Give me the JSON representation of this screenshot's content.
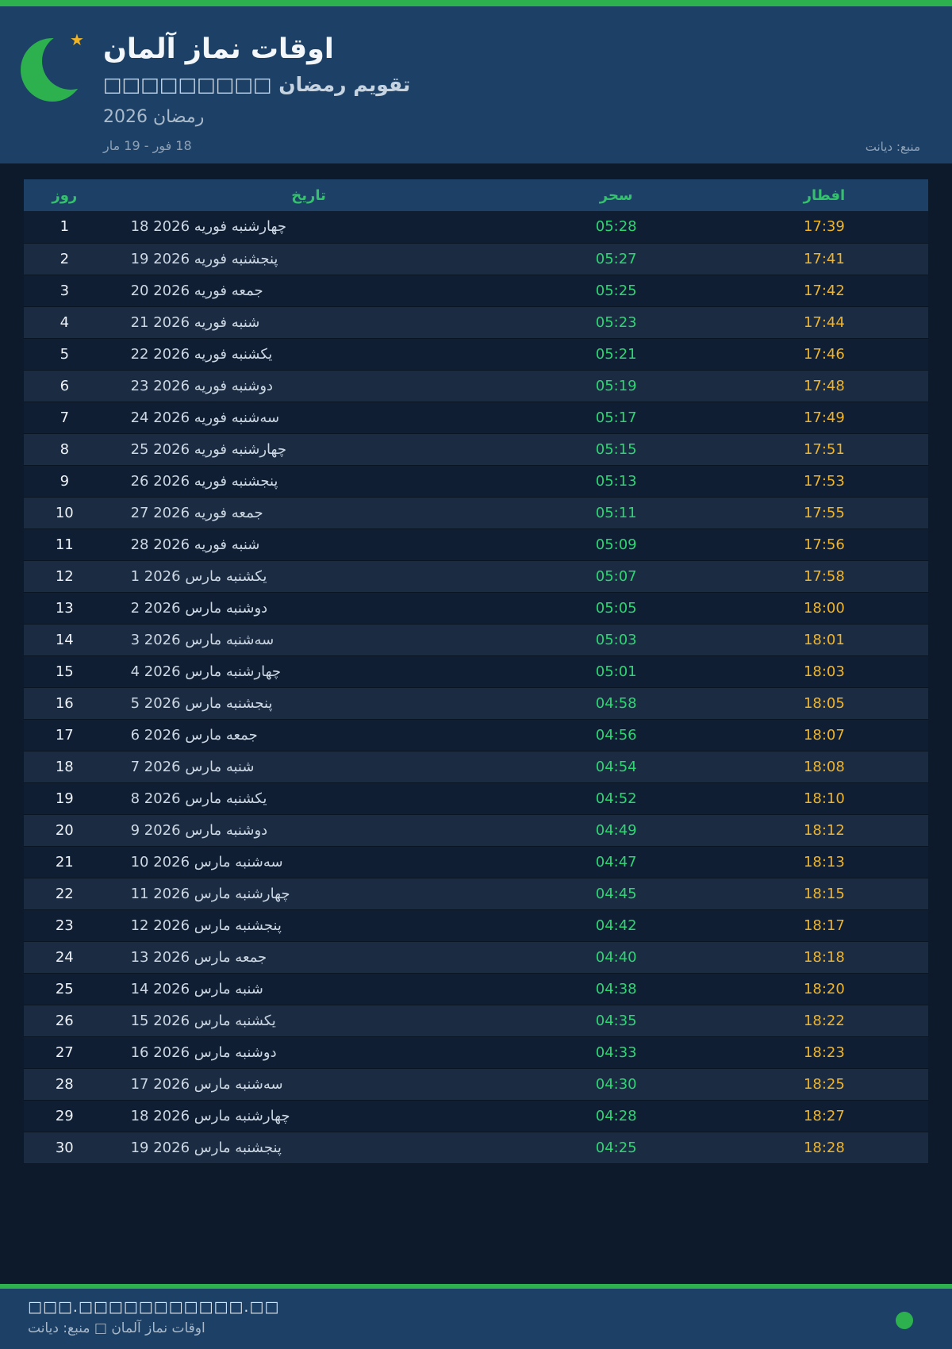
{
  "colors": {
    "accent_green": "#2cb14e",
    "sahar_green": "#2fd573",
    "iftar_gold": "#f0b429",
    "band_blue": "#1d4166",
    "page_navy": "#0c1a2c",
    "star_gold": "#f2b422"
  },
  "header": {
    "star_icon": "★",
    "title": "اوقات نماز آلمان",
    "subtitle": "تقویم رمضان □□□□□□□□□",
    "season": "رمضان 2026",
    "range": "18 فور - 19 مار",
    "source": "منبع: دیانت"
  },
  "table": {
    "columns": [
      "روز",
      "تاریخ",
      "سحر",
      "افطار"
    ],
    "rows": [
      {
        "day": "1",
        "date": "18 فوریه 2026",
        "weekday": "چهارشنبه",
        "sahar": "05:28",
        "iftar": "17:39"
      },
      {
        "day": "2",
        "date": "19 فوریه 2026",
        "weekday": "پنجشنبه",
        "sahar": "05:27",
        "iftar": "17:41"
      },
      {
        "day": "3",
        "date": "20 فوریه 2026",
        "weekday": "جمعه",
        "sahar": "05:25",
        "iftar": "17:42"
      },
      {
        "day": "4",
        "date": "21 فوریه 2026",
        "weekday": "شنبه",
        "sahar": "05:23",
        "iftar": "17:44"
      },
      {
        "day": "5",
        "date": "22 فوریه 2026",
        "weekday": "یکشنبه",
        "sahar": "05:21",
        "iftar": "17:46"
      },
      {
        "day": "6",
        "date": "23 فوریه 2026",
        "weekday": "دوشنبه",
        "sahar": "05:19",
        "iftar": "17:48"
      },
      {
        "day": "7",
        "date": "24 فوریه 2026",
        "weekday": "سه‌شنبه",
        "sahar": "05:17",
        "iftar": "17:49"
      },
      {
        "day": "8",
        "date": "25 فوریه 2026",
        "weekday": "چهارشنبه",
        "sahar": "05:15",
        "iftar": "17:51"
      },
      {
        "day": "9",
        "date": "26 فوریه 2026",
        "weekday": "پنجشنبه",
        "sahar": "05:13",
        "iftar": "17:53"
      },
      {
        "day": "10",
        "date": "27 فوریه 2026",
        "weekday": "جمعه",
        "sahar": "05:11",
        "iftar": "17:55"
      },
      {
        "day": "11",
        "date": "28 فوریه 2026",
        "weekday": "شنبه",
        "sahar": "05:09",
        "iftar": "17:56"
      },
      {
        "day": "12",
        "date": "1 مارس 2026",
        "weekday": "یکشنبه",
        "sahar": "05:07",
        "iftar": "17:58"
      },
      {
        "day": "13",
        "date": "2 مارس 2026",
        "weekday": "دوشنبه",
        "sahar": "05:05",
        "iftar": "18:00"
      },
      {
        "day": "14",
        "date": "3 مارس 2026",
        "weekday": "سه‌شنبه",
        "sahar": "05:03",
        "iftar": "18:01"
      },
      {
        "day": "15",
        "date": "4 مارس 2026",
        "weekday": "چهارشنبه",
        "sahar": "05:01",
        "iftar": "18:03"
      },
      {
        "day": "16",
        "date": "5 مارس 2026",
        "weekday": "پنجشنبه",
        "sahar": "04:58",
        "iftar": "18:05"
      },
      {
        "day": "17",
        "date": "6 مارس 2026",
        "weekday": "جمعه",
        "sahar": "04:56",
        "iftar": "18:07"
      },
      {
        "day": "18",
        "date": "7 مارس 2026",
        "weekday": "شنبه",
        "sahar": "04:54",
        "iftar": "18:08"
      },
      {
        "day": "19",
        "date": "8 مارس 2026",
        "weekday": "یکشنبه",
        "sahar": "04:52",
        "iftar": "18:10"
      },
      {
        "day": "20",
        "date": "9 مارس 2026",
        "weekday": "دوشنبه",
        "sahar": "04:49",
        "iftar": "18:12"
      },
      {
        "day": "21",
        "date": "10 مارس 2026",
        "weekday": "سه‌شنبه",
        "sahar": "04:47",
        "iftar": "18:13"
      },
      {
        "day": "22",
        "date": "11 مارس 2026",
        "weekday": "چهارشنبه",
        "sahar": "04:45",
        "iftar": "18:15"
      },
      {
        "day": "23",
        "date": "12 مارس 2026",
        "weekday": "پنجشنبه",
        "sahar": "04:42",
        "iftar": "18:17"
      },
      {
        "day": "24",
        "date": "13 مارس 2026",
        "weekday": "جمعه",
        "sahar": "04:40",
        "iftar": "18:18"
      },
      {
        "day": "25",
        "date": "14 مارس 2026",
        "weekday": "شنبه",
        "sahar": "04:38",
        "iftar": "18:20"
      },
      {
        "day": "26",
        "date": "15 مارس 2026",
        "weekday": "یکشنبه",
        "sahar": "04:35",
        "iftar": "18:22"
      },
      {
        "day": "27",
        "date": "16 مارس 2026",
        "weekday": "دوشنبه",
        "sahar": "04:33",
        "iftar": "18:23"
      },
      {
        "day": "28",
        "date": "17 مارس 2026",
        "weekday": "سه‌شنبه",
        "sahar": "04:30",
        "iftar": "18:25"
      },
      {
        "day": "29",
        "date": "18 مارس 2026",
        "weekday": "چهارشنبه",
        "sahar": "04:28",
        "iftar": "18:27"
      },
      {
        "day": "30",
        "date": "19 مارس 2026",
        "weekday": "پنجشنبه",
        "sahar": "04:25",
        "iftar": "18:28"
      }
    ]
  },
  "footer": {
    "url": "□□□.□□□□□□□□□□□.□□",
    "credit": "اوقات نماز آلمان □ منبع: دیانت"
  }
}
